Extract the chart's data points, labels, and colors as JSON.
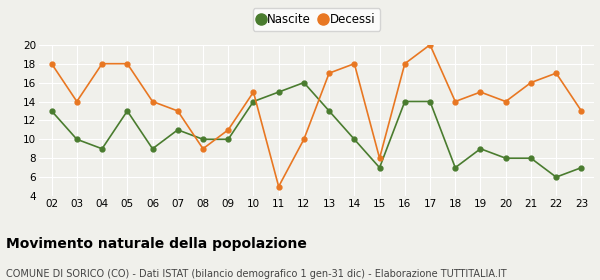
{
  "years": [
    "02",
    "03",
    "04",
    "05",
    "06",
    "07",
    "08",
    "09",
    "10",
    "11",
    "12",
    "13",
    "14",
    "15",
    "16",
    "17",
    "18",
    "19",
    "20",
    "21",
    "22",
    "23"
  ],
  "nascite": [
    13,
    10,
    9,
    13,
    9,
    11,
    10,
    10,
    14,
    15,
    16,
    13,
    10,
    7,
    14,
    14,
    7,
    9,
    8,
    8,
    6,
    7
  ],
  "decessi": [
    18,
    14,
    18,
    18,
    14,
    13,
    9,
    11,
    15,
    5,
    10,
    17,
    18,
    8,
    18,
    20,
    14,
    15,
    14,
    16,
    17,
    13
  ],
  "nascite_color": "#4a7c2f",
  "decessi_color": "#e87722",
  "background_color": "#f0f0eb",
  "title": "Movimento naturale della popolazione",
  "subtitle": "COMUNE DI SORICO (CO) - Dati ISTAT (bilancio demografico 1 gen-31 dic) - Elaborazione TUTTITALIA.IT",
  "ylim": [
    4,
    20
  ],
  "yticks": [
    4,
    6,
    8,
    10,
    12,
    14,
    16,
    18,
    20
  ],
  "legend_nascite": "Nascite",
  "legend_decessi": "Decessi",
  "title_fontsize": 10,
  "subtitle_fontsize": 7,
  "tick_fontsize": 7.5,
  "legend_fontsize": 8.5
}
